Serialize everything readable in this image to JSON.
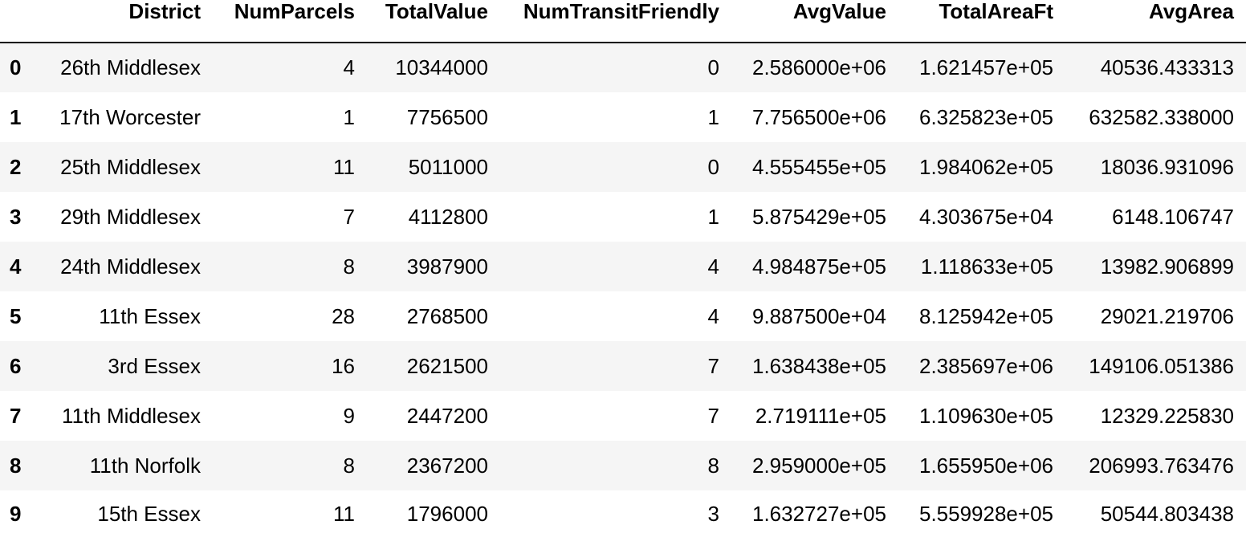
{
  "table": {
    "columns": [
      "District",
      "NumParcels",
      "TotalValue",
      "NumTransitFriendly",
      "AvgValue",
      "TotalAreaFt",
      "AvgArea"
    ],
    "rows": [
      {
        "index": "0",
        "cells": [
          "26th Middlesex",
          "4",
          "10344000",
          "0",
          "2.586000e+06",
          "1.621457e+05",
          "40536.433313"
        ]
      },
      {
        "index": "1",
        "cells": [
          "17th Worcester",
          "1",
          "7756500",
          "1",
          "7.756500e+06",
          "6.325823e+05",
          "632582.338000"
        ]
      },
      {
        "index": "2",
        "cells": [
          "25th Middlesex",
          "11",
          "5011000",
          "0",
          "4.555455e+05",
          "1.984062e+05",
          "18036.931096"
        ]
      },
      {
        "index": "3",
        "cells": [
          "29th Middlesex",
          "7",
          "4112800",
          "1",
          "5.875429e+05",
          "4.303675e+04",
          "6148.106747"
        ]
      },
      {
        "index": "4",
        "cells": [
          "24th Middlesex",
          "8",
          "3987900",
          "4",
          "4.984875e+05",
          "1.118633e+05",
          "13982.906899"
        ]
      },
      {
        "index": "5",
        "cells": [
          "11th Essex",
          "28",
          "2768500",
          "4",
          "9.887500e+04",
          "8.125942e+05",
          "29021.219706"
        ]
      },
      {
        "index": "6",
        "cells": [
          "3rd Essex",
          "16",
          "2621500",
          "7",
          "1.638438e+05",
          "2.385697e+06",
          "149106.051386"
        ]
      },
      {
        "index": "7",
        "cells": [
          "11th Middlesex",
          "9",
          "2447200",
          "7",
          "2.719111e+05",
          "1.109630e+05",
          "12329.225830"
        ]
      },
      {
        "index": "8",
        "cells": [
          "11th Norfolk",
          "8",
          "2367200",
          "8",
          "2.959000e+05",
          "1.655950e+06",
          "206993.763476"
        ]
      },
      {
        "index": "9",
        "cells": [
          "15th Essex",
          "11",
          "1796000",
          "3",
          "1.632727e+05",
          "5.559928e+05",
          "50544.803438"
        ]
      }
    ]
  }
}
